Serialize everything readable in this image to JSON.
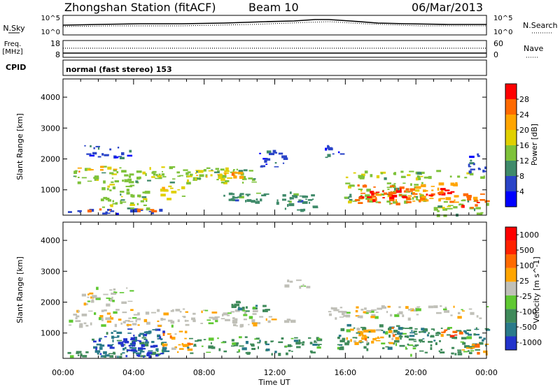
{
  "header": {
    "title": "Zhongshan Station (fitACF)",
    "beam": "Beam 10",
    "date": "06/Mar/2013"
  },
  "noise_panel": {
    "left_label": "N.Sky",
    "right_label": "N.Search",
    "left_ticks": [
      "10^5",
      "10^0"
    ],
    "right_ticks": [
      "10^5",
      "10^0"
    ]
  },
  "freq_panel": {
    "left_label_line1": "Freq.",
    "left_label_line2": "[MHz]",
    "right_label": "Nave",
    "left_ticks": [
      "18",
      "8"
    ],
    "right_ticks": [
      "60",
      "0"
    ]
  },
  "cpid": {
    "label": "CPID",
    "program": "normal (fast stereo) 153"
  },
  "chart_data": [
    {
      "type": "heatmap",
      "quantity": "Power",
      "ylabel": "Slant Range [km]",
      "colorbar_label": "Power [dB]",
      "ylim": [
        180,
        4590
      ],
      "yticks": [
        "1000",
        "2000",
        "3000",
        "4000"
      ],
      "xlim_hours": [
        0,
        24
      ],
      "colorbar_ticks": [
        "4",
        "8",
        "12",
        "16",
        "20",
        "24",
        "28"
      ],
      "colorbar_colors": [
        "#0000ff",
        "#2a44c8",
        "#3f8a6a",
        "#7ec23a",
        "#e0d000",
        "#ffa500",
        "#ff6a00",
        "#ff0000"
      ],
      "echo_regions": [
        {
          "t0": 0.2,
          "t1": 5.7,
          "r0": 250,
          "r1": 420,
          "c": 1
        },
        {
          "t0": 0.3,
          "t1": 6.0,
          "r0": 330,
          "r1": 400,
          "c": 6
        },
        {
          "t0": 0.5,
          "t1": 10.8,
          "r0": 1250,
          "r1": 1780,
          "c": 3
        },
        {
          "t0": 0.8,
          "t1": 3.0,
          "r0": 1600,
          "r1": 1780,
          "c": 5
        },
        {
          "t0": 1.2,
          "t1": 3.8,
          "r0": 2050,
          "r1": 2450,
          "c": 1
        },
        {
          "t0": 2.0,
          "t1": 4.8,
          "r0": 400,
          "r1": 1200,
          "c": 3
        },
        {
          "t0": 5.5,
          "t1": 6.8,
          "r0": 700,
          "r1": 1150,
          "c": 4
        },
        {
          "t0": 7.0,
          "t1": 10.5,
          "r0": 1350,
          "r1": 1650,
          "c": 4
        },
        {
          "t0": 8.5,
          "t1": 10.0,
          "r0": 1450,
          "r1": 1600,
          "c": 5
        },
        {
          "t0": 9.0,
          "t1": 14.5,
          "r0": 600,
          "r1": 950,
          "c": 2
        },
        {
          "t0": 11.0,
          "t1": 12.5,
          "r0": 1700,
          "r1": 2300,
          "c": 1
        },
        {
          "t0": 12.5,
          "t1": 14.2,
          "r0": 350,
          "r1": 900,
          "c": 2
        },
        {
          "t0": 15.8,
          "t1": 20.5,
          "r0": 550,
          "r1": 1250,
          "c": 3
        },
        {
          "t0": 16.5,
          "t1": 19.6,
          "r0": 580,
          "r1": 1180,
          "c": 6
        },
        {
          "t0": 17.2,
          "t1": 19.3,
          "r0": 680,
          "r1": 1080,
          "c": 7
        },
        {
          "t0": 16.0,
          "t1": 24.0,
          "r0": 1400,
          "r1": 1650,
          "c": 3
        },
        {
          "t0": 19.5,
          "t1": 22.3,
          "r0": 600,
          "r1": 1250,
          "c": 5
        },
        {
          "t0": 20.5,
          "t1": 22.0,
          "r0": 800,
          "r1": 1150,
          "c": 7
        },
        {
          "t0": 21.0,
          "t1": 24.0,
          "r0": 200,
          "r1": 700,
          "c": 3
        },
        {
          "t0": 22.5,
          "t1": 24.0,
          "r0": 400,
          "r1": 900,
          "c": 6
        },
        {
          "t0": 14.8,
          "t1": 15.8,
          "r0": 2000,
          "r1": 2500,
          "c": 1
        },
        {
          "t0": 22.8,
          "t1": 24.0,
          "r0": 1600,
          "r1": 2200,
          "c": 1
        }
      ]
    },
    {
      "type": "heatmap",
      "quantity": "Velocity",
      "ylabel": "Slant Range [km]",
      "colorbar_label": "Velocity [m s^-1]",
      "ylim": [
        180,
        4590
      ],
      "yticks": [
        "1000",
        "2000",
        "3000",
        "4000"
      ],
      "xlim_hours": [
        0,
        24
      ],
      "colorbar_ticks": [
        "1000",
        "500",
        "100",
        "25",
        "-25",
        "-100",
        "-500",
        "-1000"
      ],
      "colorbar_colors": [
        "#2233cc",
        "#2a7a8a",
        "#3f8a5a",
        "#5fc832",
        "#c0c0b8",
        "#ffa500",
        "#ff6a00",
        "#ff2200",
        "#ff0000"
      ],
      "echo_regions": [
        {
          "t0": 0.3,
          "t1": 11.0,
          "r0": 1250,
          "r1": 1800,
          "c": 4
        },
        {
          "t0": 1.0,
          "t1": 3.8,
          "r0": 1950,
          "r1": 2500,
          "c": 4
        },
        {
          "t0": 11.0,
          "t1": 13.0,
          "r0": 1350,
          "r1": 1550,
          "c": 4
        },
        {
          "t0": 12.5,
          "t1": 14.0,
          "r0": 2500,
          "r1": 2750,
          "c": 4
        },
        {
          "t0": 15.0,
          "t1": 24.0,
          "r0": 1500,
          "r1": 1900,
          "c": 4
        },
        {
          "t0": 0.2,
          "t1": 6.0,
          "r0": 250,
          "r1": 500,
          "c": 2
        },
        {
          "t0": 1.5,
          "t1": 5.8,
          "r0": 350,
          "r1": 1100,
          "c": 1
        },
        {
          "t0": 3.0,
          "t1": 5.5,
          "r0": 250,
          "r1": 1150,
          "c": 0
        },
        {
          "t0": 5.6,
          "t1": 7.2,
          "r0": 400,
          "r1": 1100,
          "c": 5
        },
        {
          "t0": 7.0,
          "t1": 14.5,
          "r0": 350,
          "r1": 900,
          "c": 2
        },
        {
          "t0": 9.0,
          "t1": 11.5,
          "r0": 1700,
          "r1": 2050,
          "c": 2
        },
        {
          "t0": 15.5,
          "t1": 20.5,
          "r0": 500,
          "r1": 1300,
          "c": 2
        },
        {
          "t0": 16.0,
          "t1": 19.0,
          "r0": 700,
          "r1": 1250,
          "c": 5
        },
        {
          "t0": 19.5,
          "t1": 24.0,
          "r0": 300,
          "r1": 1200,
          "c": 2
        },
        {
          "t0": 21.0,
          "t1": 22.5,
          "r0": 900,
          "r1": 1150,
          "c": 6
        },
        {
          "t0": 22.5,
          "t1": 24.0,
          "r0": 350,
          "r1": 700,
          "c": 5
        }
      ]
    }
  ],
  "xaxis": {
    "label": "Time UT",
    "ticks": [
      "00:00",
      "04:00",
      "08:00",
      "12:00",
      "16:00",
      "20:00",
      "00:00"
    ]
  }
}
